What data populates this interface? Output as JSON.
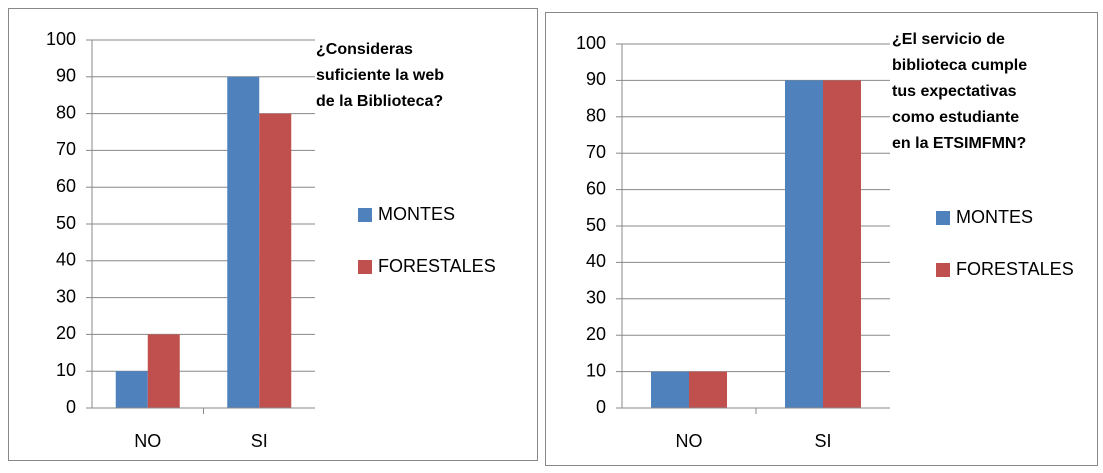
{
  "chart_data": [
    {
      "type": "bar",
      "title": [
        "¿Consideras",
        "suficiente la web",
        "de la Biblioteca?"
      ],
      "categories": [
        "NO",
        "SI"
      ],
      "series": [
        {
          "name": "MONTES",
          "color": "#4f81bd",
          "values": [
            10,
            90
          ]
        },
        {
          "name": "FORESTALES",
          "color": "#c0504d",
          "values": [
            20,
            80
          ]
        }
      ],
      "ylim": [
        0,
        100
      ],
      "yticks": [
        0,
        10,
        20,
        30,
        40,
        50,
        60,
        70,
        80,
        90,
        100
      ],
      "grid": true,
      "legend": "right"
    },
    {
      "type": "bar",
      "title": [
        "¿El servicio de",
        "biblioteca cumple",
        "tus expectativas",
        "como estudiante",
        "en la ETSIMFMN?"
      ],
      "categories": [
        "NO",
        "SI"
      ],
      "series": [
        {
          "name": "MONTES",
          "color": "#4f81bd",
          "values": [
            10,
            90
          ]
        },
        {
          "name": "FORESTALES",
          "color": "#c0504d",
          "values": [
            10,
            90
          ]
        }
      ],
      "ylim": [
        0,
        100
      ],
      "yticks": [
        0,
        10,
        20,
        30,
        40,
        50,
        60,
        70,
        80,
        90,
        100
      ],
      "grid": true,
      "legend": "right"
    }
  ]
}
